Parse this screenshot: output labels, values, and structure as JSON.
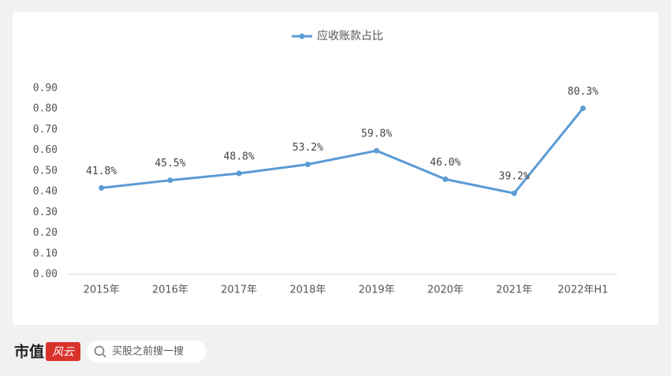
{
  "chart_data": {
    "type": "line",
    "categories": [
      "2015年",
      "2016年",
      "2017年",
      "2018年",
      "2019年",
      "2020年",
      "2021年",
      "2022年H1"
    ],
    "series": [
      {
        "name": "应收账款占比",
        "color": "#5b9bd5",
        "values": [
          0.418,
          0.455,
          0.488,
          0.532,
          0.598,
          0.46,
          0.392,
          0.803
        ],
        "value_labels": [
          "41.8%",
          "45.5%",
          "48.8%",
          "53.2%",
          "59.8%",
          "46.0%",
          "39.2%",
          "80.3%"
        ]
      }
    ],
    "ylim": [
      0,
      0.9
    ],
    "yticks": [
      {
        "value": 0,
        "label": "0.00"
      },
      {
        "value": 0.1,
        "label": "0.10"
      },
      {
        "value": 0.2,
        "label": "0.20"
      },
      {
        "value": 0.3,
        "label": "0.30"
      },
      {
        "value": 0.4,
        "label": "0.40"
      },
      {
        "value": 0.5,
        "label": "0.50"
      },
      {
        "value": 0.6,
        "label": "0.60"
      },
      {
        "value": 0.7,
        "label": "0.70"
      },
      {
        "value": 0.8,
        "label": "0.80"
      },
      {
        "value": 0.9,
        "label": "0.90"
      }
    ],
    "grid": false,
    "legend": "top"
  },
  "footer": {
    "brand": "市值",
    "logo": "风云",
    "search": "买股之前搜一搜"
  }
}
